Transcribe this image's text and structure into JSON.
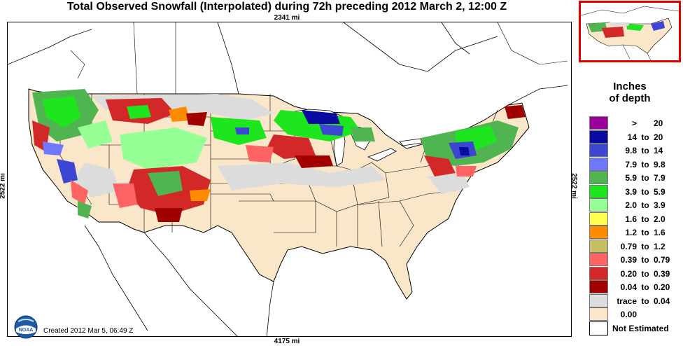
{
  "title": "Total Observed Snowfall (Interpolated) during 72h preceding 2012 March 2, 12:00 Z",
  "dimensions": {
    "top": "2341 mi",
    "bottom": "4175 mi",
    "left": "2522 mi",
    "right": "2522 mi"
  },
  "created": "Created 2012 Mar 5, 06:49 Z",
  "logo": {
    "name": "noaa-logo",
    "text": "NOAA"
  },
  "legend": {
    "title_line1": "Inches",
    "title_line2": "of depth",
    "to_word": "to",
    "not_estimated": "Not Estimated",
    "items": [
      {
        "lo": ">",
        "to": "",
        "hi": "20",
        "color": "#9c009c"
      },
      {
        "lo": "14",
        "to": "to",
        "hi": "20",
        "color": "#0a0aa0"
      },
      {
        "lo": "9.8",
        "to": "to",
        "hi": "14",
        "color": "#3c46d2"
      },
      {
        "lo": "7.9",
        "to": "to",
        "hi": "9.8",
        "color": "#6e78ff"
      },
      {
        "lo": "5.9",
        "to": "to",
        "hi": "7.9",
        "color": "#50b450"
      },
      {
        "lo": "3.9",
        "to": "to",
        "hi": "5.9",
        "color": "#1ee61e"
      },
      {
        "lo": "2.0",
        "to": "to",
        "hi": "3.9",
        "color": "#96ff96"
      },
      {
        "lo": "1.6",
        "to": "to",
        "hi": "2.0",
        "color": "#ffff50"
      },
      {
        "lo": "1.2",
        "to": "to",
        "hi": "1.6",
        "color": "#ff8c00"
      },
      {
        "lo": "0.79",
        "to": "to",
        "hi": "1.2",
        "color": "#c8be64"
      },
      {
        "lo": "0.39",
        "to": "to",
        "hi": "0.79",
        "color": "#ff6464"
      },
      {
        "lo": "0.20",
        "to": "to",
        "hi": "0.39",
        "color": "#d22828"
      },
      {
        "lo": "0.04",
        "to": "to",
        "hi": "0.20",
        "color": "#a00000"
      },
      {
        "lo": "trace",
        "to": "to",
        "hi": "0.04",
        "color": "#dcdcdc"
      },
      {
        "lo": "0.00",
        "to": "",
        "hi": "",
        "color": "#fae6c8"
      }
    ]
  },
  "colors": {
    "land_no_snow": "#fae6c8",
    "outside_coverage": "#ffffff",
    "borders": "#000000",
    "inset_frame": "#e00000"
  }
}
